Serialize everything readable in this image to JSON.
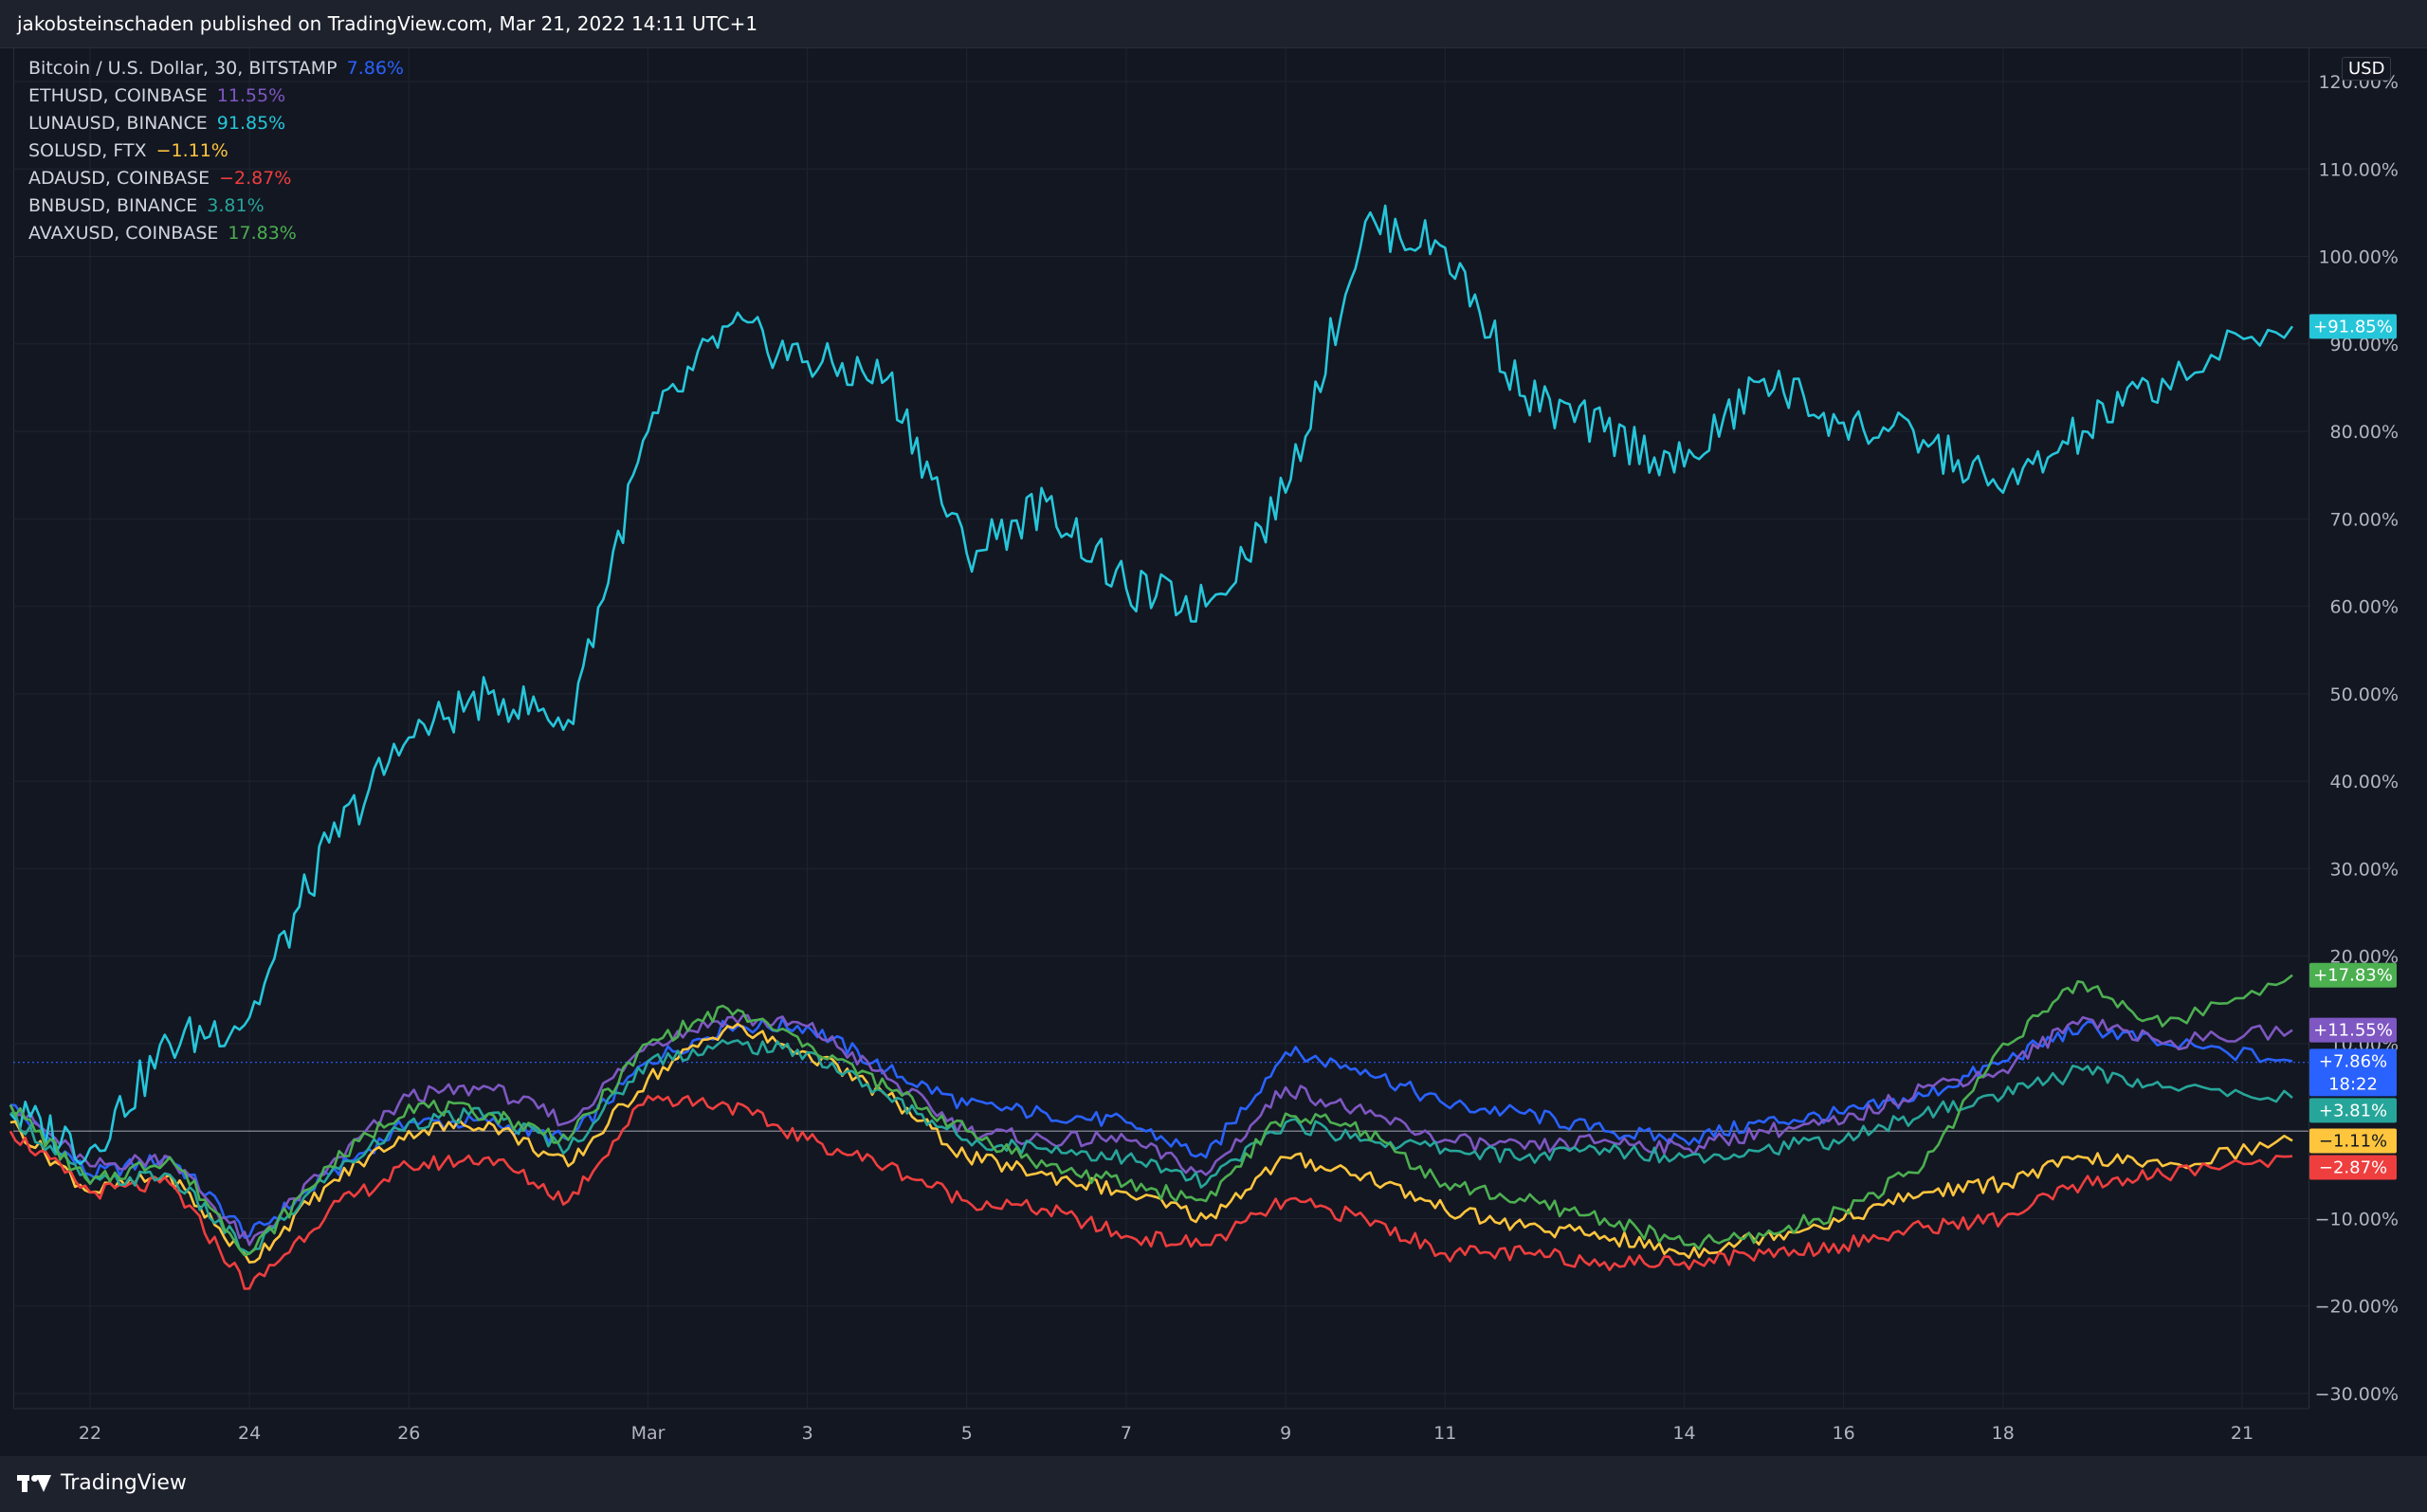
{
  "header": {
    "published_text": "jakobsteinschaden published on TradingView.com, Mar 21, 2022 14:11 UTC+1"
  },
  "footer": {
    "brand": "TradingView"
  },
  "chart_data": {
    "type": "line",
    "title": "",
    "yunit": "USD",
    "ylim": [
      -32,
      122
    ],
    "y_ticks": [
      {
        "value": 120,
        "label": "120.00%"
      },
      {
        "value": 110,
        "label": "110.00%"
      },
      {
        "value": 100,
        "label": "100.00%"
      },
      {
        "value": 90,
        "label": "90.00%"
      },
      {
        "value": 80,
        "label": "80.00%"
      },
      {
        "value": 70,
        "label": "70.00%"
      },
      {
        "value": 60,
        "label": "60.00%"
      },
      {
        "value": 50,
        "label": "50.00%"
      },
      {
        "value": 40,
        "label": "40.00%"
      },
      {
        "value": 30,
        "label": "30.00%"
      },
      {
        "value": 20,
        "label": "20.00%"
      },
      {
        "value": 10,
        "label": "10.00%"
      },
      {
        "value": -10,
        "label": "−10.00%"
      },
      {
        "value": -20,
        "label": "−20.00%"
      },
      {
        "value": -30,
        "label": "−30.00%"
      }
    ],
    "xlim": [
      "2022-02-21",
      "2022-03-21 14:00"
    ],
    "x_ticks": [
      {
        "date": "2022-02-22",
        "label": "22"
      },
      {
        "date": "2022-02-24",
        "label": "24"
      },
      {
        "date": "2022-02-26",
        "label": "26"
      },
      {
        "date": "2022-03-01",
        "label": "Mar"
      },
      {
        "date": "2022-03-03",
        "label": "3"
      },
      {
        "date": "2022-03-05",
        "label": "5"
      },
      {
        "date": "2022-03-07",
        "label": "7"
      },
      {
        "date": "2022-03-09",
        "label": "9"
      },
      {
        "date": "2022-03-11",
        "label": "11"
      },
      {
        "date": "2022-03-14",
        "label": "14"
      },
      {
        "date": "2022-03-16",
        "label": "16"
      },
      {
        "date": "2022-03-18",
        "label": "18"
      },
      {
        "date": "2022-03-21",
        "label": "21"
      }
    ],
    "baseline": 0,
    "reference_line": {
      "value": 7.86
    },
    "grid": true,
    "legend_position": "top-left",
    "x": [
      "2022-02-21",
      "2022-02-22",
      "2022-02-23",
      "2022-02-24",
      "2022-02-25",
      "2022-02-26",
      "2022-02-27",
      "2022-02-28",
      "2022-03-01",
      "2022-03-02",
      "2022-03-03",
      "2022-03-04",
      "2022-03-05",
      "2022-03-06",
      "2022-03-07",
      "2022-03-08",
      "2022-03-09",
      "2022-03-10",
      "2022-03-11",
      "2022-03-12",
      "2022-03-13",
      "2022-03-14",
      "2022-03-15",
      "2022-03-16",
      "2022-03-17",
      "2022-03-18",
      "2022-03-19",
      "2022-03-20",
      "2022-03-21"
    ],
    "series": [
      {
        "name": "Bitcoin / U.S. Dollar, 30, BITSTAMP",
        "legend_pct": "7.86%",
        "price_label": "+7.86%",
        "countdown": "18:22",
        "color": "#2962ff",
        "values": [
          3,
          -5,
          -3,
          -12,
          -5,
          1,
          1,
          -1,
          8,
          12,
          12,
          7,
          3,
          2,
          1,
          -3,
          9,
          7,
          3,
          2,
          0,
          -1,
          1,
          2,
          4,
          8,
          12,
          10,
          8
        ]
      },
      {
        "name": "ETHUSD, COINBASE",
        "legend_pct": "11.55%",
        "price_label": "+11.55%",
        "color": "#7e57c2",
        "values": [
          3,
          -4,
          -3,
          -13,
          -4,
          4,
          5,
          1,
          10,
          13,
          12,
          6,
          0,
          -1,
          -1,
          -5,
          5,
          2,
          -1,
          -2,
          -1,
          -2,
          0,
          1,
          5,
          7,
          13,
          10,
          11.55
        ]
      },
      {
        "name": "LUNAUSD, BINANCE",
        "legend_pct": "91.85%",
        "price_label": "+91.85%",
        "color": "#26c6da",
        "values": [
          2,
          -2,
          10,
          13,
          33,
          45,
          50,
          47,
          80,
          92,
          88,
          86,
          66,
          72,
          62,
          60,
          73,
          104,
          101,
          84,
          80,
          76,
          86,
          81,
          79,
          73,
          80,
          86,
          92
        ]
      },
      {
        "name": "SOLUSD, FTX",
        "legend_pct": "−1.11%",
        "price_label": "−1.11%",
        "color": "#ffc53d",
        "values": [
          1,
          -7,
          -5,
          -15,
          -6,
          0,
          1,
          -4,
          6,
          12,
          9,
          4,
          -3,
          -5,
          -7,
          -10,
          -3,
          -5,
          -9,
          -11,
          -12,
          -14,
          -12,
          -10,
          -7,
          -6,
          -3,
          -4,
          -1.11
        ]
      },
      {
        "name": "ADAUSD, COINBASE",
        "legend_pct": "−2.87%",
        "price_label": "−2.87%",
        "color": "#ef3e3e",
        "values": [
          0,
          -7,
          -6,
          -18,
          -9,
          -4,
          -3,
          -8,
          4,
          3,
          -1,
          -4,
          -8,
          -9,
          -12,
          -13,
          -8,
          -10,
          -14,
          -14,
          -15,
          -15,
          -14,
          -13,
          -11,
          -10,
          -6,
          -5,
          -2.87
        ]
      },
      {
        "name": "BNBUSD, BINANCE",
        "legend_pct": "3.81%",
        "price_label": "+3.81%",
        "color": "#26a69a",
        "values": [
          2,
          -6,
          -5,
          -14,
          -5,
          1,
          2,
          -2,
          8,
          10,
          9,
          4,
          -1,
          -2,
          -3,
          -6,
          1,
          -1,
          -2,
          -3,
          -2,
          -3,
          -2,
          -1,
          2,
          4,
          7,
          5,
          3.81
        ]
      },
      {
        "name": "AVAXUSD, COINBASE",
        "legend_pct": "17.83%",
        "price_label": "+17.83%",
        "color": "#4caf50",
        "values": [
          3,
          -6,
          -3,
          -14,
          -4,
          3,
          2,
          -1,
          10,
          14,
          10,
          5,
          0,
          -4,
          -6,
          -8,
          2,
          0,
          -6,
          -8,
          -10,
          -13,
          -12,
          -9,
          -4,
          10,
          17,
          12,
          17.83
        ]
      }
    ]
  }
}
